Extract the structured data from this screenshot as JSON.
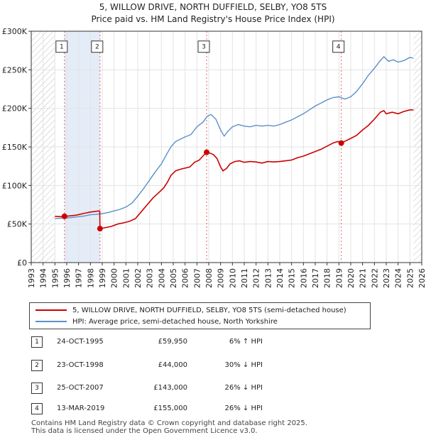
{
  "chart_data": {
    "type": "line",
    "title": "5, WILLOW DRIVE, NORTH DUFFIELD, SELBY, YO8 5TS",
    "subtitle": "Price paid vs. HM Land Registry's House Price Index (HPI)",
    "xlim": [
      1993,
      2026
    ],
    "ylim": [
      0,
      300000
    ],
    "y_ticks": [
      0,
      50000,
      100000,
      150000,
      200000,
      250000,
      300000
    ],
    "y_tick_labels": [
      "£0",
      "£50K",
      "£100K",
      "£150K",
      "£200K",
      "£250K",
      "£300K"
    ],
    "x_ticks": [
      1993,
      1994,
      1995,
      1996,
      1997,
      1998,
      1999,
      2000,
      2001,
      2002,
      2003,
      2004,
      2005,
      2006,
      2007,
      2008,
      2009,
      2010,
      2011,
      2012,
      2013,
      2014,
      2015,
      2016,
      2017,
      2018,
      2019,
      2020,
      2021,
      2022,
      2023,
      2024,
      2025,
      2026
    ],
    "hatched_ranges": [
      [
        1993,
        1995.0
      ],
      [
        2025.3,
        2026
      ]
    ],
    "series": [
      {
        "name": "5, WILLOW DRIVE, NORTH DUFFIELD, SELBY, YO8 5TS (semi-detached house)",
        "color": "#cc0000",
        "points": [
          [
            1995.0,
            60000
          ],
          [
            1995.5,
            59500
          ],
          [
            1995.81,
            59950
          ],
          [
            1996.2,
            60500
          ],
          [
            1996.8,
            61500
          ],
          [
            1997.5,
            64000
          ],
          [
            1998.0,
            65500
          ],
          [
            1998.5,
            66500
          ],
          [
            1998.7,
            67000
          ],
          [
            1998.79,
            66500
          ],
          [
            1998.81,
            44000
          ],
          [
            1999.3,
            45500
          ],
          [
            1999.8,
            47000
          ],
          [
            2000.3,
            50000
          ],
          [
            2000.8,
            51500
          ],
          [
            2001.3,
            53500
          ],
          [
            2001.8,
            57000
          ],
          [
            2002.3,
            66000
          ],
          [
            2002.8,
            75000
          ],
          [
            2003.3,
            84000
          ],
          [
            2003.8,
            91000
          ],
          [
            2004.2,
            97000
          ],
          [
            2004.5,
            104000
          ],
          [
            2004.8,
            113000
          ],
          [
            2005.2,
            119000
          ],
          [
            2005.6,
            121000
          ],
          [
            2006.0,
            122500
          ],
          [
            2006.4,
            124000
          ],
          [
            2006.8,
            130000
          ],
          [
            2007.2,
            133000
          ],
          [
            2007.5,
            138000
          ],
          [
            2007.82,
            143000
          ],
          [
            2008.1,
            142000
          ],
          [
            2008.4,
            140000
          ],
          [
            2008.7,
            135000
          ],
          [
            2009.0,
            124000
          ],
          [
            2009.2,
            119000
          ],
          [
            2009.5,
            122000
          ],
          [
            2009.8,
            128000
          ],
          [
            2010.2,
            131000
          ],
          [
            2010.6,
            132000
          ],
          [
            2011.0,
            130000
          ],
          [
            2011.5,
            131000
          ],
          [
            2012.0,
            130500
          ],
          [
            2012.5,
            129000
          ],
          [
            2013.0,
            131000
          ],
          [
            2013.5,
            130500
          ],
          [
            2014.0,
            131000
          ],
          [
            2014.5,
            132000
          ],
          [
            2015.0,
            133000
          ],
          [
            2015.5,
            136000
          ],
          [
            2016.0,
            138000
          ],
          [
            2016.5,
            141000
          ],
          [
            2017.0,
            144000
          ],
          [
            2017.5,
            147000
          ],
          [
            2018.0,
            151000
          ],
          [
            2018.5,
            155000
          ],
          [
            2018.9,
            157000
          ],
          [
            2019.2,
            155000
          ],
          [
            2019.6,
            158000
          ],
          [
            2020.0,
            161000
          ],
          [
            2020.5,
            165000
          ],
          [
            2021.0,
            172000
          ],
          [
            2021.5,
            178000
          ],
          [
            2022.0,
            186000
          ],
          [
            2022.5,
            195000
          ],
          [
            2022.8,
            197000
          ],
          [
            2023.0,
            193000
          ],
          [
            2023.5,
            195000
          ],
          [
            2024.0,
            193000
          ],
          [
            2024.5,
            196000
          ],
          [
            2025.0,
            198000
          ],
          [
            2025.3,
            198000
          ]
        ]
      },
      {
        "name": "HPI: Average price, semi-detached house, North Yorkshire",
        "color": "#5b8fc9",
        "points": [
          [
            1995.0,
            57000
          ],
          [
            1995.5,
            57500
          ],
          [
            1996.0,
            57800
          ],
          [
            1996.5,
            58500
          ],
          [
            1997.0,
            59500
          ],
          [
            1997.5,
            60500
          ],
          [
            1998.0,
            62000
          ],
          [
            1998.5,
            62500
          ],
          [
            1999.0,
            63500
          ],
          [
            1999.5,
            65000
          ],
          [
            2000.0,
            67000
          ],
          [
            2000.5,
            69000
          ],
          [
            2001.0,
            72000
          ],
          [
            2001.5,
            77000
          ],
          [
            2002.0,
            86000
          ],
          [
            2002.5,
            96000
          ],
          [
            2003.0,
            107000
          ],
          [
            2003.5,
            118000
          ],
          [
            2004.0,
            128000
          ],
          [
            2004.5,
            142000
          ],
          [
            2004.8,
            150000
          ],
          [
            2005.2,
            157000
          ],
          [
            2005.6,
            160000
          ],
          [
            2006.0,
            163000
          ],
          [
            2006.5,
            166000
          ],
          [
            2007.0,
            176000
          ],
          [
            2007.5,
            182000
          ],
          [
            2007.9,
            190000
          ],
          [
            2008.2,
            192000
          ],
          [
            2008.6,
            186000
          ],
          [
            2009.0,
            172000
          ],
          [
            2009.3,
            164000
          ],
          [
            2009.6,
            170000
          ],
          [
            2010.0,
            176000
          ],
          [
            2010.5,
            179000
          ],
          [
            2011.0,
            177000
          ],
          [
            2011.5,
            176000
          ],
          [
            2012.0,
            178000
          ],
          [
            2012.5,
            177000
          ],
          [
            2013.0,
            178000
          ],
          [
            2013.5,
            177000
          ],
          [
            2014.0,
            179000
          ],
          [
            2014.5,
            182000
          ],
          [
            2015.0,
            185000
          ],
          [
            2015.5,
            189000
          ],
          [
            2016.0,
            193000
          ],
          [
            2016.5,
            198000
          ],
          [
            2017.0,
            203000
          ],
          [
            2017.5,
            207000
          ],
          [
            2018.0,
            211000
          ],
          [
            2018.5,
            214000
          ],
          [
            2019.0,
            215000
          ],
          [
            2019.5,
            212000
          ],
          [
            2020.0,
            215000
          ],
          [
            2020.5,
            222000
          ],
          [
            2021.0,
            232000
          ],
          [
            2021.5,
            243000
          ],
          [
            2022.0,
            252000
          ],
          [
            2022.5,
            262000
          ],
          [
            2022.8,
            267000
          ],
          [
            2023.2,
            261000
          ],
          [
            2023.6,
            263000
          ],
          [
            2024.0,
            260000
          ],
          [
            2024.5,
            262000
          ],
          [
            2025.0,
            266000
          ],
          [
            2025.3,
            265000
          ]
        ]
      }
    ],
    "sales": [
      {
        "label": "1",
        "year": 1995.81,
        "price": 59950
      },
      {
        "label": "2",
        "year": 1998.81,
        "price": 44000
      },
      {
        "label": "3",
        "year": 2007.82,
        "price": 143000
      },
      {
        "label": "4",
        "year": 2019.2,
        "price": 155000
      }
    ],
    "annotation_box_value": 280000
  },
  "legend": {
    "property": "5, WILLOW DRIVE, NORTH DUFFIELD, SELBY, YO8 5TS (semi-detached house)",
    "hpi": "HPI: Average price, semi-detached house, North Yorkshire",
    "property_color": "#cc0000",
    "hpi_color": "#5b8fc9"
  },
  "transactions": [
    {
      "num": "1",
      "date": "24-OCT-1995",
      "price": "£59,950",
      "hpi": "6% ↑ HPI"
    },
    {
      "num": "2",
      "date": "23-OCT-1998",
      "price": "£44,000",
      "hpi": "30% ↓ HPI"
    },
    {
      "num": "3",
      "date": "25-OCT-2007",
      "price": "£143,000",
      "hpi": "26% ↓ HPI"
    },
    {
      "num": "4",
      "date": "13-MAR-2019",
      "price": "£155,000",
      "hpi": "26% ↓ HPI"
    }
  ],
  "footer": {
    "line1": "Contains HM Land Registry data © Crown copyright and database right 2025.",
    "line2": "This data is licensed under the Open Government Licence v3.0."
  }
}
